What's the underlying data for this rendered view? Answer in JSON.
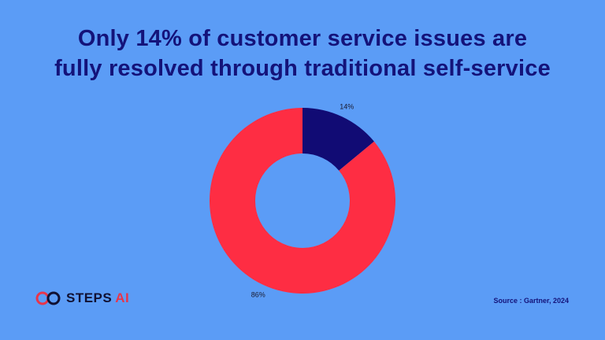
{
  "slide": {
    "title_line1": "Only 14% of customer service issues are",
    "title_line2": "fully resolved through traditional self-service",
    "source": "Source : Gartner, 2024",
    "brand_name": "STEPS",
    "brand_suffix": "AI"
  },
  "colors": {
    "background": "#5b9cf6",
    "title": "#14137a",
    "accent_red": "#fe2d43",
    "accent_navy": "#110b74"
  },
  "chart_data": {
    "type": "pie",
    "donut": true,
    "slices": [
      {
        "label": "14%",
        "value": 14,
        "color": "#110b74"
      },
      {
        "label": "86%",
        "value": 86,
        "color": "#fe2d43"
      }
    ]
  }
}
